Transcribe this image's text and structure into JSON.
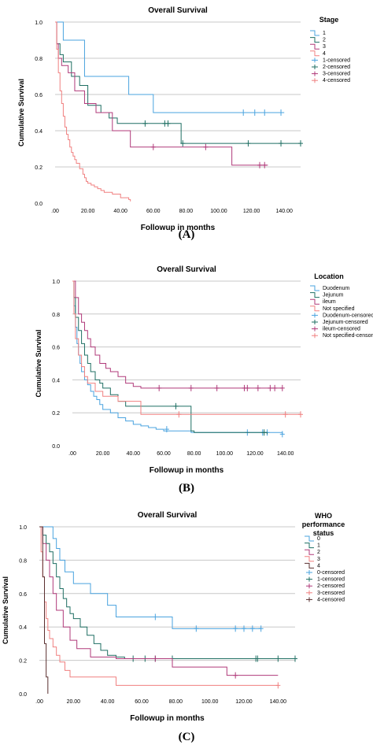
{
  "chart_data": [
    {
      "type": "line",
      "step": true,
      "title": "Overall Survival",
      "xlabel": "Followup in months",
      "ylabel": "Cumulative Survival",
      "xlim": [
        0,
        150
      ],
      "ylim": [
        0,
        1.0
      ],
      "xticks": [
        ".00",
        "20.00",
        "40.00",
        "60.00",
        "80.00",
        "100.00",
        "120.00",
        "140.00"
      ],
      "xtick_values": [
        0,
        20,
        40,
        60,
        80,
        100,
        120,
        140
      ],
      "yticks": [
        "0.0",
        "0.2",
        "0.4",
        "0.6",
        "0.8",
        "1.0"
      ],
      "ytick_values": [
        0,
        0.2,
        0.4,
        0.6,
        0.8,
        1.0
      ],
      "grid": "horizontal",
      "legend_title": "Stage",
      "legend_position": "top-right",
      "legend": [
        "1",
        "2",
        "3",
        "4",
        "1-censored",
        "2-censored",
        "3-censored",
        "4-censored"
      ],
      "caption": "(A)",
      "series": [
        {
          "name": "1",
          "color": "#4aa3df",
          "x": [
            0,
            5,
            18,
            45,
            60,
            140
          ],
          "y": [
            1.0,
            0.9,
            0.7,
            0.6,
            0.5,
            0.5
          ],
          "censored": [
            [
              115,
              0.5
            ],
            [
              122,
              0.5
            ],
            [
              128,
              0.5
            ],
            [
              138,
              0.5
            ]
          ]
        },
        {
          "name": "2",
          "color": "#1f6f63",
          "x": [
            0,
            1,
            3,
            5,
            10,
            15,
            20,
            28,
            33,
            38,
            76,
            77,
            150
          ],
          "y": [
            1.0,
            0.88,
            0.82,
            0.78,
            0.7,
            0.65,
            0.54,
            0.5,
            0.47,
            0.44,
            0.44,
            0.33,
            0.33
          ],
          "censored": [
            [
              55,
              0.44
            ],
            [
              67,
              0.44
            ],
            [
              69,
              0.44
            ],
            [
              78,
              0.33
            ],
            [
              118,
              0.33
            ],
            [
              138,
              0.33
            ],
            [
              150,
              0.33
            ]
          ]
        },
        {
          "name": "3",
          "color": "#b03a7a",
          "x": [
            0,
            1,
            2,
            4,
            8,
            12,
            18,
            25,
            35,
            46,
            108,
            130
          ],
          "y": [
            1.0,
            0.88,
            0.8,
            0.76,
            0.72,
            0.62,
            0.55,
            0.5,
            0.4,
            0.31,
            0.21,
            0.21
          ],
          "censored": [
            [
              60,
              0.31
            ],
            [
              92,
              0.31
            ],
            [
              125,
              0.21
            ],
            [
              128,
              0.21
            ]
          ]
        },
        {
          "name": "4",
          "color": "#f08080",
          "x": [
            0,
            1,
            2,
            3,
            4,
            5,
            6,
            7,
            8,
            9,
            10,
            11,
            12,
            13,
            15,
            17,
            18,
            19,
            20,
            22,
            24,
            26,
            28,
            30,
            35,
            40,
            45,
            46
          ],
          "y": [
            1.0,
            0.85,
            0.72,
            0.62,
            0.55,
            0.48,
            0.42,
            0.38,
            0.35,
            0.31,
            0.28,
            0.26,
            0.24,
            0.22,
            0.19,
            0.16,
            0.14,
            0.12,
            0.11,
            0.1,
            0.09,
            0.08,
            0.07,
            0.06,
            0.05,
            0.03,
            0.02,
            0.01
          ],
          "censored": []
        }
      ]
    },
    {
      "type": "line",
      "step": true,
      "title": "Overall Survival",
      "xlabel": "Followup in months",
      "ylabel": "Cumulative Survival",
      "xlim": [
        0,
        150
      ],
      "ylim": [
        0,
        1.0
      ],
      "xticks": [
        ".00",
        "20.00",
        "40.00",
        "60.00",
        "80.00",
        "100.00",
        "120.00",
        "140.00"
      ],
      "xtick_values": [
        0,
        20,
        40,
        60,
        80,
        100,
        120,
        140
      ],
      "yticks": [
        "0.0",
        "0.2",
        "0.4",
        "0.6",
        "0.8",
        "1.0"
      ],
      "ytick_values": [
        0,
        0.2,
        0.4,
        0.6,
        0.8,
        1.0
      ],
      "grid": "horizontal",
      "legend_title": "Location",
      "legend_position": "top-right",
      "legend": [
        "Duodenum",
        "Jejunum",
        "ileum",
        "Not specified",
        "Duodenum-censored",
        "Jejunum-censored",
        "ileum-censored",
        "Not specified-censored"
      ],
      "caption": "(B)",
      "series": [
        {
          "name": "Duodenum",
          "color": "#4aa3df",
          "x": [
            0,
            1,
            2,
            3,
            4,
            5,
            6,
            8,
            10,
            12,
            14,
            16,
            18,
            20,
            25,
            30,
            35,
            40,
            45,
            50,
            55,
            60,
            78,
            138
          ],
          "y": [
            1.0,
            0.85,
            0.72,
            0.62,
            0.55,
            0.5,
            0.45,
            0.4,
            0.37,
            0.33,
            0.3,
            0.28,
            0.25,
            0.22,
            0.2,
            0.17,
            0.15,
            0.13,
            0.12,
            0.11,
            0.1,
            0.09,
            0.08,
            0.07
          ],
          "censored": [
            [
              62,
              0.1
            ],
            [
              115,
              0.08
            ],
            [
              125,
              0.08
            ],
            [
              128,
              0.08
            ],
            [
              138,
              0.07
            ]
          ]
        },
        {
          "name": "Jejunum",
          "color": "#1f6f63",
          "x": [
            0,
            1,
            2,
            4,
            6,
            8,
            10,
            12,
            15,
            18,
            20,
            25,
            30,
            35,
            78,
            80,
            128
          ],
          "y": [
            1.0,
            0.9,
            0.78,
            0.7,
            0.62,
            0.55,
            0.5,
            0.45,
            0.4,
            0.38,
            0.35,
            0.31,
            0.27,
            0.24,
            0.09,
            0.08,
            0.07
          ],
          "censored": [
            [
              68,
              0.24
            ],
            [
              126,
              0.08
            ]
          ]
        },
        {
          "name": "ileum",
          "color": "#b03a7a",
          "x": [
            0,
            2,
            4,
            6,
            8,
            10,
            12,
            15,
            18,
            22,
            25,
            30,
            35,
            40,
            45,
            138
          ],
          "y": [
            1.0,
            0.9,
            0.8,
            0.75,
            0.7,
            0.65,
            0.6,
            0.55,
            0.5,
            0.47,
            0.45,
            0.42,
            0.38,
            0.36,
            0.35,
            0.35
          ],
          "censored": [
            [
              57,
              0.35
            ],
            [
              78,
              0.35
            ],
            [
              95,
              0.35
            ],
            [
              113,
              0.35
            ],
            [
              115,
              0.35
            ],
            [
              122,
              0.35
            ],
            [
              130,
              0.35
            ],
            [
              133,
              0.35
            ],
            [
              138,
              0.35
            ]
          ]
        },
        {
          "name": "Not specified",
          "color": "#f08080",
          "x": [
            0,
            1,
            2,
            4,
            6,
            8,
            10,
            15,
            20,
            30,
            45,
            150
          ],
          "y": [
            1.0,
            0.8,
            0.65,
            0.55,
            0.48,
            0.42,
            0.38,
            0.33,
            0.3,
            0.27,
            0.19,
            0.19
          ],
          "censored": [
            [
              70,
              0.19
            ],
            [
              140,
              0.19
            ],
            [
              150,
              0.19
            ]
          ]
        }
      ]
    },
    {
      "type": "line",
      "step": true,
      "title": "Overall Survival",
      "xlabel": "Followup in months",
      "ylabel": "Cumulative Survival",
      "xlim": [
        0,
        150
      ],
      "ylim": [
        0,
        1.0
      ],
      "xticks": [
        ".00",
        "20.00",
        "40.00",
        "60.00",
        "80.00",
        "100.00",
        "120.00",
        "140.00"
      ],
      "xtick_values": [
        0,
        20,
        40,
        60,
        80,
        100,
        120,
        140
      ],
      "yticks": [
        "0.0",
        "0.2",
        "0.4",
        "0.6",
        "0.8",
        "1.0"
      ],
      "ytick_values": [
        0,
        0.2,
        0.4,
        0.6,
        0.8,
        1.0
      ],
      "grid": "horizontal",
      "legend_title": [
        "WHO",
        "performance",
        "status"
      ],
      "legend_position": "top-right",
      "legend": [
        "0",
        "1",
        "2",
        "3",
        "4",
        "0-censored",
        "1-censored",
        "2-censored",
        "3-censored",
        "4-censored"
      ],
      "caption": "(C)",
      "series": [
        {
          "name": "0",
          "color": "#4aa3df",
          "x": [
            0,
            8,
            10,
            12,
            15,
            20,
            30,
            40,
            45,
            70,
            78,
            130
          ],
          "y": [
            1.0,
            0.93,
            0.87,
            0.8,
            0.73,
            0.66,
            0.6,
            0.53,
            0.46,
            0.46,
            0.39,
            0.39
          ],
          "censored": [
            [
              68,
              0.46
            ],
            [
              92,
              0.39
            ],
            [
              115,
              0.39
            ],
            [
              120,
              0.39
            ],
            [
              125,
              0.39
            ],
            [
              130,
              0.39
            ]
          ]
        },
        {
          "name": "1",
          "color": "#1f6f63",
          "x": [
            0,
            2,
            4,
            6,
            8,
            10,
            12,
            14,
            16,
            18,
            20,
            24,
            28,
            32,
            36,
            40,
            45,
            50,
            150
          ],
          "y": [
            1.0,
            0.95,
            0.9,
            0.85,
            0.78,
            0.7,
            0.63,
            0.57,
            0.52,
            0.48,
            0.45,
            0.4,
            0.35,
            0.3,
            0.26,
            0.23,
            0.22,
            0.21,
            0.21
          ],
          "censored": [
            [
              55,
              0.21
            ],
            [
              62,
              0.21
            ],
            [
              68,
              0.21
            ],
            [
              78,
              0.21
            ],
            [
              127,
              0.21
            ],
            [
              128,
              0.21
            ],
            [
              140,
              0.21
            ],
            [
              150,
              0.21
            ]
          ]
        },
        {
          "name": "2",
          "color": "#b03a7a",
          "x": [
            0,
            2,
            4,
            6,
            8,
            10,
            14,
            18,
            22,
            30,
            45,
            78,
            110,
            140
          ],
          "y": [
            1.0,
            0.9,
            0.8,
            0.7,
            0.6,
            0.5,
            0.4,
            0.32,
            0.27,
            0.22,
            0.21,
            0.16,
            0.11,
            0.11
          ],
          "censored": [
            [
              68,
              0.21
            ],
            [
              115,
              0.11
            ]
          ]
        },
        {
          "name": "3",
          "color": "#f08080",
          "x": [
            0,
            1,
            2,
            3,
            4,
            5,
            6,
            8,
            10,
            12,
            15,
            18,
            45,
            140
          ],
          "y": [
            1.0,
            0.85,
            0.7,
            0.55,
            0.45,
            0.38,
            0.33,
            0.28,
            0.23,
            0.19,
            0.14,
            0.1,
            0.05,
            0.05
          ],
          "censored": [
            [
              140,
              0.05
            ]
          ]
        },
        {
          "name": "4",
          "color": "#5a3030",
          "x": [
            0,
            1,
            2,
            3,
            4,
            5
          ],
          "y": [
            1.0,
            1.0,
            0.7,
            0.3,
            0.1,
            0.0
          ],
          "censored": []
        }
      ]
    }
  ]
}
